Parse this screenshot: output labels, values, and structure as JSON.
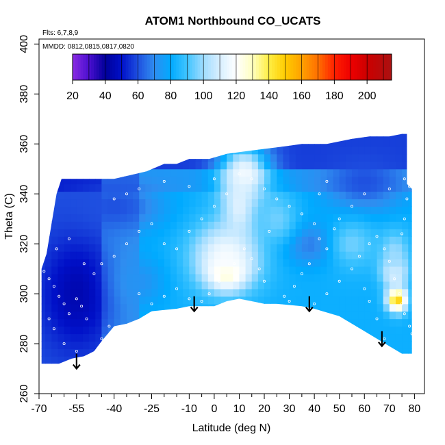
{
  "chart_data": {
    "type": "heatmap",
    "title": "ATOM1 Northbound CO_UCATS",
    "annotations": [
      "Flts: 6,7,8,9",
      "MMDD: 0812,0815,0817,0820"
    ],
    "xlabel": "Latitude (deg N)",
    "ylabel": "Theta (C)",
    "xlim": [
      -70,
      84
    ],
    "ylim": [
      260,
      402
    ],
    "x_ticks": [
      -70,
      -55,
      -40,
      -25,
      -10,
      0,
      10,
      20,
      30,
      40,
      50,
      60,
      70,
      80
    ],
    "x_minor_ticks": [
      -65,
      -60,
      -50,
      -45,
      -35,
      -30,
      -20,
      -15,
      -5,
      5,
      15,
      25,
      35,
      45,
      55,
      65,
      75
    ],
    "y_ticks": [
      260,
      280,
      300,
      320,
      340,
      360,
      380,
      400
    ],
    "colorbar": {
      "range": [
        20,
        215
      ],
      "ticks": [
        20,
        40,
        60,
        80,
        100,
        120,
        140,
        160,
        180,
        200
      ],
      "colors": [
        {
          "v": 20,
          "c": "#8a2be2"
        },
        {
          "v": 30,
          "c": "#4b0fd0"
        },
        {
          "v": 40,
          "c": "#000099"
        },
        {
          "v": 50,
          "c": "#0010c8"
        },
        {
          "v": 60,
          "c": "#1f50e0"
        },
        {
          "v": 70,
          "c": "#2f8df0"
        },
        {
          "v": 80,
          "c": "#00aaff"
        },
        {
          "v": 90,
          "c": "#40c4ff"
        },
        {
          "v": 100,
          "c": "#a0dcff"
        },
        {
          "v": 110,
          "c": "#d8efff"
        },
        {
          "v": 120,
          "c": "#ffffff"
        },
        {
          "v": 130,
          "c": "#ffffc0"
        },
        {
          "v": 140,
          "c": "#ffee44"
        },
        {
          "v": 150,
          "c": "#ffcc00"
        },
        {
          "v": 160,
          "c": "#ffa000"
        },
        {
          "v": 170,
          "c": "#ff7000"
        },
        {
          "v": 180,
          "c": "#ff2000"
        },
        {
          "v": 190,
          "c": "#ee0000"
        },
        {
          "v": 200,
          "c": "#cc0000"
        },
        {
          "v": 215,
          "c": "#aa1111"
        }
      ]
    },
    "top_boundary": [
      [
        -69,
        310
      ],
      [
        -67,
        316
      ],
      [
        -65,
        328
      ],
      [
        -63,
        340
      ],
      [
        -61,
        346
      ],
      [
        -50,
        346
      ],
      [
        -40,
        346
      ],
      [
        -27,
        349
      ],
      [
        -20,
        352
      ],
      [
        -15,
        352
      ],
      [
        -10,
        354
      ],
      [
        -2,
        354
      ],
      [
        5,
        356
      ],
      [
        12,
        357
      ],
      [
        20,
        358
      ],
      [
        28,
        359
      ],
      [
        35,
        360
      ],
      [
        45,
        360
      ],
      [
        55,
        362
      ],
      [
        62,
        363
      ],
      [
        70,
        363
      ],
      [
        75,
        364
      ],
      [
        77,
        364
      ],
      [
        77,
        344
      ],
      [
        79,
        342
      ],
      [
        79,
        279
      ]
    ],
    "bottom_boundary": [
      [
        79,
        276
      ],
      [
        75,
        276
      ],
      [
        70,
        279
      ],
      [
        60,
        285
      ],
      [
        50,
        291
      ],
      [
        40,
        294
      ],
      [
        35,
        295
      ],
      [
        25,
        296
      ],
      [
        20,
        296
      ],
      [
        15,
        297
      ],
      [
        10,
        298
      ],
      [
        5,
        297
      ],
      [
        0,
        295
      ],
      [
        -5,
        295
      ],
      [
        -10,
        295
      ],
      [
        -15,
        294
      ],
      [
        -25,
        293
      ],
      [
        -30,
        290
      ],
      [
        -35,
        288
      ],
      [
        -40,
        287
      ],
      [
        -45,
        281
      ],
      [
        -48,
        277
      ],
      [
        -52,
        275
      ],
      [
        -57,
        274
      ],
      [
        -62,
        272
      ],
      [
        -69,
        272
      ]
    ],
    "anomalies": [
      {
        "x": 12,
        "y": 348,
        "v": 118,
        "rx": 10,
        "ry": 12
      },
      {
        "x": 5,
        "y": 309,
        "v": 150,
        "rx": 7,
        "ry": 6
      },
      {
        "x": 5,
        "y": 315,
        "v": 118,
        "rx": 14,
        "ry": 14
      },
      {
        "x": 10,
        "y": 335,
        "v": 112,
        "rx": 6,
        "ry": 12
      },
      {
        "x": 73,
        "y": 298,
        "v": 152,
        "rx": 4,
        "ry": 5
      },
      {
        "x": 72,
        "y": 309,
        "v": 120,
        "rx": 5,
        "ry": 6
      },
      {
        "x": 72,
        "y": 316,
        "v": 100,
        "rx": 6,
        "ry": 10
      },
      {
        "x": -55,
        "y": 300,
        "v": 45,
        "rx": 14,
        "ry": 22
      },
      {
        "x": -30,
        "y": 305,
        "v": 72,
        "rx": 10,
        "ry": 10
      },
      {
        "x": 40,
        "y": 320,
        "v": 65,
        "rx": 12,
        "ry": 8
      },
      {
        "x": 60,
        "y": 345,
        "v": 60,
        "rx": 16,
        "ry": 12
      },
      {
        "x": -40,
        "y": 335,
        "v": 60,
        "rx": 18,
        "ry": 10
      },
      {
        "x": 25,
        "y": 330,
        "v": 95,
        "rx": 8,
        "ry": 10
      },
      {
        "x": 55,
        "y": 320,
        "v": 95,
        "rx": 10,
        "ry": 10
      }
    ],
    "data_points": [
      [
        -68,
        309
      ],
      [
        -66,
        306
      ],
      [
        -64,
        303
      ],
      [
        -62,
        299
      ],
      [
        -60,
        296
      ],
      [
        -58,
        292
      ],
      [
        -66,
        290
      ],
      [
        -64,
        286
      ],
      [
        -55,
        298
      ],
      [
        -53,
        295
      ],
      [
        -51,
        290
      ],
      [
        -60,
        280
      ],
      [
        -55,
        277
      ],
      [
        -53,
        274
      ],
      [
        -45,
        282
      ],
      [
        -42,
        287
      ],
      [
        -63,
        318
      ],
      [
        -58,
        322
      ],
      [
        -52,
        312
      ],
      [
        -48,
        308
      ],
      [
        -45,
        312
      ],
      [
        -40,
        315
      ],
      [
        -35,
        320
      ],
      [
        -30,
        325
      ],
      [
        -25,
        328
      ],
      [
        -20,
        320
      ],
      [
        -15,
        318
      ],
      [
        -10,
        325
      ],
      [
        -5,
        330
      ],
      [
        0,
        335
      ],
      [
        5,
        340
      ],
      [
        -30,
        300
      ],
      [
        -25,
        296
      ],
      [
        -20,
        299
      ],
      [
        -15,
        302
      ],
      [
        -10,
        298
      ],
      [
        -5,
        297
      ],
      [
        -40,
        338
      ],
      [
        -35,
        340
      ],
      [
        -30,
        342
      ],
      [
        -20,
        345
      ],
      [
        -10,
        343
      ],
      [
        0,
        346
      ],
      [
        10,
        348
      ],
      [
        15,
        346
      ],
      [
        20,
        342
      ],
      [
        25,
        338
      ],
      [
        30,
        335
      ],
      [
        35,
        332
      ],
      [
        40,
        328
      ],
      [
        42,
        322
      ],
      [
        45,
        318
      ],
      [
        38,
        312
      ],
      [
        35,
        308
      ],
      [
        32,
        303
      ],
      [
        28,
        299
      ],
      [
        30,
        297
      ],
      [
        40,
        296
      ],
      [
        45,
        300
      ],
      [
        50,
        305
      ],
      [
        55,
        310
      ],
      [
        58,
        315
      ],
      [
        62,
        320
      ],
      [
        65,
        323
      ],
      [
        68,
        318
      ],
      [
        70,
        313
      ],
      [
        72,
        306
      ],
      [
        74,
        300
      ],
      [
        75,
        296
      ],
      [
        76,
        292
      ],
      [
        78,
        287
      ],
      [
        79,
        284
      ],
      [
        68,
        282
      ],
      [
        65,
        290
      ],
      [
        62,
        297
      ],
      [
        60,
        302
      ],
      [
        48,
        326
      ],
      [
        50,
        330
      ],
      [
        55,
        335
      ],
      [
        60,
        340
      ],
      [
        70,
        342
      ],
      [
        76,
        346
      ],
      [
        78,
        343
      ],
      [
        77,
        338
      ],
      [
        76,
        330
      ],
      [
        75,
        324
      ],
      [
        42,
        340
      ],
      [
        45,
        345
      ],
      [
        12,
        318
      ],
      [
        15,
        314
      ],
      [
        18,
        310
      ],
      [
        20,
        305
      ],
      [
        8,
        312
      ],
      [
        2,
        305
      ],
      [
        -2,
        300
      ],
      [
        22,
        325
      ]
    ],
    "arrows": [
      {
        "x": -55,
        "y_top": 276,
        "y_bot": 270
      },
      {
        "x": -8,
        "y_top": 299,
        "y_bot": 293
      },
      {
        "x": 38,
        "y_top": 299,
        "y_bot": 293
      },
      {
        "x": 67,
        "y_top": 285,
        "y_bot": 279
      }
    ]
  }
}
